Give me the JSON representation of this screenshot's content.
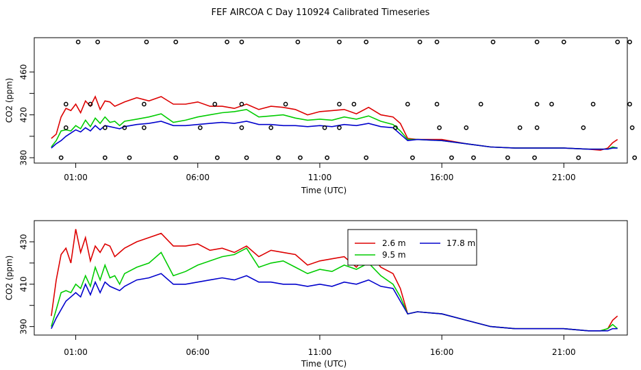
{
  "colors": {
    "s1": "#dd0000",
    "s2": "#00cc00",
    "s3": "#0000cc",
    "axis": "#000000",
    "background": "#ffffff"
  },
  "chart_data": {
    "title": "FEF AIRCOA C  Day 110924  Calibrated Timeseries",
    "panels": [
      {
        "id": "top",
        "type": "line",
        "xlabel": "Time (UTC)",
        "ylabel": "CO2 (ppm)",
        "xlim": [
          -0.7,
          23.6
        ],
        "ylim": [
          375,
          492
        ],
        "x_ticks": [
          1,
          6,
          11,
          16,
          21
        ],
        "x_tick_labels": [
          "01:00",
          "06:00",
          "11:00",
          "16:00",
          "21:00"
        ],
        "y_ticks": [
          380,
          400,
          420,
          440,
          460
        ],
        "y_tick_labels": [
          "380",
          "",
          "420",
          "",
          "460"
        ],
        "grid": false,
        "series": [
          {
            "name": "2.6 m",
            "color": "#dd0000",
            "x": [
              0,
              0.2,
              0.4,
              0.6,
              0.8,
              1.0,
              1.2,
              1.4,
              1.6,
              1.8,
              2.0,
              2.2,
              2.4,
              2.6,
              2.8,
              3.0,
              3.5,
              4.0,
              4.5,
              5.0,
              5.5,
              6.0,
              6.5,
              7.0,
              7.5,
              8.0,
              8.5,
              9.0,
              9.5,
              10.0,
              10.5,
              11.0,
              11.5,
              12.0,
              12.5,
              13.0,
              13.5,
              14.0,
              14.3,
              14.6,
              15.0,
              16.0,
              17.0,
              18.0,
              19.0,
              20.0,
              21.0,
              22.0,
              22.5,
              22.8,
              23.0,
              23.2
            ],
            "values": [
              398,
              402,
              418,
              426,
              424,
              430,
              422,
              433,
              428,
              437,
              425,
              433,
              432,
              428,
              430,
              432,
              436,
              433,
              437,
              430,
              430,
              432,
              428,
              428,
              426,
              430,
              425,
              428,
              427,
              425,
              420,
              423,
              424,
              425,
              421,
              427,
              420,
              418,
              412,
              398,
              397,
              397,
              393,
              390,
              389,
              389,
              389,
              388,
              387,
              389,
              394,
              397
            ]
          },
          {
            "name": "9.5 m",
            "color": "#00cc00",
            "x": [
              0,
              0.2,
              0.4,
              0.6,
              0.8,
              1.0,
              1.2,
              1.4,
              1.6,
              1.8,
              2.0,
              2.2,
              2.4,
              2.6,
              2.8,
              3.0,
              3.5,
              4.0,
              4.5,
              5.0,
              5.5,
              6.0,
              6.5,
              7.0,
              7.5,
              8.0,
              8.5,
              9.0,
              9.5,
              10.0,
              10.5,
              11.0,
              11.5,
              12.0,
              12.5,
              13.0,
              13.5,
              14.0,
              14.3,
              14.6,
              15.0,
              16.0,
              17.0,
              18.0,
              19.0,
              20.0,
              21.0,
              22.0,
              22.5,
              22.8,
              23.0,
              23.2
            ],
            "values": [
              390,
              396,
              405,
              406,
              405,
              410,
              407,
              415,
              409,
              417,
              412,
              418,
              413,
              414,
              410,
              414,
              416,
              418,
              421,
              413,
              415,
              418,
              420,
              422,
              423,
              425,
              418,
              419,
              420,
              417,
              415,
              416,
              415,
              418,
              416,
              419,
              414,
              411,
              405,
              397,
              397,
              396,
              393,
              390,
              389,
              389,
              389,
              388,
              388,
              388,
              390,
              389
            ]
          },
          {
            "name": "17.8 m",
            "color": "#0000cc",
            "x": [
              0,
              0.2,
              0.4,
              0.6,
              0.8,
              1.0,
              1.2,
              1.4,
              1.6,
              1.8,
              2.0,
              2.2,
              2.4,
              2.6,
              2.8,
              3.0,
              3.5,
              4.0,
              4.5,
              5.0,
              5.5,
              6.0,
              6.5,
              7.0,
              7.5,
              8.0,
              8.5,
              9.0,
              9.5,
              10.0,
              10.5,
              11.0,
              11.5,
              12.0,
              12.5,
              13.0,
              13.5,
              14.0,
              14.3,
              14.6,
              15.0,
              16.0,
              17.0,
              18.0,
              19.0,
              20.0,
              21.0,
              22.0,
              22.5,
              22.8,
              23.0,
              23.2
            ],
            "values": [
              389,
              393,
              396,
              400,
              403,
              406,
              404,
              408,
              405,
              410,
              406,
              410,
              409,
              408,
              407,
              409,
              411,
              412,
              414,
              410,
              410,
              411,
              412,
              413,
              412,
              414,
              411,
              411,
              410,
              410,
              409,
              410,
              409,
              411,
              410,
              412,
              409,
              408,
              402,
              396,
              397,
              396,
              393,
              390,
              389,
              389,
              389,
              388,
              388,
              388,
              389,
              389
            ]
          }
        ],
        "marker_points": {
          "x": [
            1.1,
            1.9,
            3.9,
            5.1,
            7.2,
            7.8,
            10.1,
            11.8,
            12.9,
            15.1,
            15.8,
            18.1,
            19.9,
            21.0,
            23.2,
            23.7,
            0.6,
            1.6,
            3.8,
            6.7,
            7.8,
            9.6,
            11.8,
            12.4,
            14.6,
            15.8,
            17.6,
            19.9,
            20.5,
            22.2,
            23.7,
            0.6,
            2.2,
            3.0,
            3.8,
            6.1,
            7.8,
            9.0,
            11.2,
            11.8,
            14.1,
            15.9,
            17.0,
            19.2,
            19.9,
            21.8,
            23.8,
            0.4,
            2.2,
            3.2,
            5.1,
            6.8,
            8.0,
            9.3,
            10.2,
            11.3,
            12.9,
            14.8,
            16.4,
            17.3,
            18.7,
            19.8,
            21.6,
            23.9
          ],
          "values": [
            488,
            488,
            488,
            488,
            488,
            488,
            488,
            488,
            488,
            488,
            488,
            488,
            488,
            488,
            488,
            488,
            430,
            430,
            430,
            430,
            430,
            430,
            430,
            430,
            430,
            430,
            430,
            430,
            430,
            430,
            430,
            408,
            408,
            408,
            408,
            408,
            408,
            408,
            408,
            408,
            408,
            408,
            408,
            408,
            408,
            408,
            408,
            380,
            380,
            380,
            380,
            380,
            380,
            380,
            380,
            380,
            380,
            380,
            380,
            380,
            380,
            380,
            380,
            380
          ]
        }
      },
      {
        "id": "bottom",
        "type": "line",
        "xlabel": "Time (UTC)",
        "ylabel": "CO2 (ppm)",
        "xlim": [
          -0.7,
          23.6
        ],
        "ylim": [
          386,
          440
        ],
        "x_ticks": [
          1,
          6,
          11,
          16,
          21
        ],
        "x_tick_labels": [
          "01:00",
          "06:00",
          "11:00",
          "16:00",
          "21:00"
        ],
        "y_ticks": [
          390,
          400,
          410,
          420,
          430
        ],
        "y_tick_labels": [
          "390",
          "",
          "410",
          "",
          "430"
        ],
        "grid": false,
        "legend": {
          "placement": "top-right-inset",
          "entries": [
            "2.6 m",
            "9.5 m",
            "17.8 m"
          ]
        },
        "series": [
          {
            "name": "2.6 m",
            "color": "#dd0000",
            "x": [
              0,
              0.2,
              0.4,
              0.6,
              0.8,
              1.0,
              1.2,
              1.4,
              1.6,
              1.8,
              2.0,
              2.2,
              2.4,
              2.6,
              2.8,
              3.0,
              3.5,
              4.0,
              4.5,
              5.0,
              5.5,
              6.0,
              6.5,
              7.0,
              7.5,
              8.0,
              8.5,
              9.0,
              9.5,
              10.0,
              10.5,
              11.0,
              11.5,
              12.0,
              12.5,
              13.0,
              13.5,
              14.0,
              14.3,
              14.6,
              15.0,
              16.0,
              17.0,
              18.0,
              19.0,
              20.0,
              21.0,
              22.0,
              22.5,
              22.8,
              23.0,
              23.2
            ],
            "values": [
              395,
              412,
              424,
              427,
              420,
              436,
              425,
              432,
              421,
              428,
              425,
              429,
              428,
              423,
              425,
              427,
              430,
              432,
              434,
              428,
              428,
              429,
              426,
              427,
              425,
              428,
              423,
              426,
              425,
              424,
              419,
              421,
              422,
              423,
              418,
              425,
              418,
              415,
              408,
              396,
              397,
              396,
              393,
              390,
              389,
              389,
              389,
              388,
              388,
              389,
              393,
              395
            ]
          },
          {
            "name": "9.5 m",
            "color": "#00cc00",
            "x": [
              0,
              0.2,
              0.4,
              0.6,
              0.8,
              1.0,
              1.2,
              1.4,
              1.6,
              1.8,
              2.0,
              2.2,
              2.4,
              2.6,
              2.8,
              3.0,
              3.5,
              4.0,
              4.5,
              5.0,
              5.5,
              6.0,
              6.5,
              7.0,
              7.5,
              8.0,
              8.5,
              9.0,
              9.5,
              10.0,
              10.5,
              11.0,
              11.5,
              12.0,
              12.5,
              13.0,
              13.5,
              14.0,
              14.3,
              14.6,
              15.0,
              16.0,
              17.0,
              18.0,
              19.0,
              20.0,
              21.0,
              22.0,
              22.5,
              22.8,
              23.0,
              23.2
            ],
            "values": [
              390,
              398,
              406,
              407,
              406,
              410,
              408,
              414,
              409,
              418,
              412,
              419,
              413,
              414,
              410,
              415,
              418,
              420,
              425,
              414,
              416,
              419,
              421,
              423,
              424,
              427,
              418,
              420,
              421,
              418,
              415,
              417,
              416,
              419,
              417,
              420,
              414,
              410,
              404,
              396,
              397,
              396,
              393,
              390,
              389,
              389,
              389,
              388,
              388,
              389,
              391,
              389
            ]
          },
          {
            "name": "17.8 m",
            "color": "#0000cc",
            "x": [
              0,
              0.2,
              0.4,
              0.6,
              0.8,
              1.0,
              1.2,
              1.4,
              1.6,
              1.8,
              2.0,
              2.2,
              2.4,
              2.6,
              2.8,
              3.0,
              3.5,
              4.0,
              4.5,
              5.0,
              5.5,
              6.0,
              6.5,
              7.0,
              7.5,
              8.0,
              8.5,
              9.0,
              9.5,
              10.0,
              10.5,
              11.0,
              11.5,
              12.0,
              12.5,
              13.0,
              13.5,
              14.0,
              14.3,
              14.6,
              15.0,
              16.0,
              17.0,
              18.0,
              19.0,
              20.0,
              21.0,
              22.0,
              22.5,
              22.8,
              23.0,
              23.2
            ],
            "values": [
              389,
              394,
              398,
              402,
              404,
              406,
              404,
              410,
              405,
              411,
              406,
              411,
              409,
              408,
              407,
              409,
              412,
              413,
              415,
              410,
              410,
              411,
              412,
              413,
              412,
              414,
              411,
              411,
              410,
              410,
              409,
              410,
              409,
              411,
              410,
              412,
              409,
              408,
              402,
              396,
              397,
              396,
              393,
              390,
              389,
              389,
              389,
              388,
              388,
              388,
              389,
              389
            ]
          }
        ]
      }
    ]
  }
}
